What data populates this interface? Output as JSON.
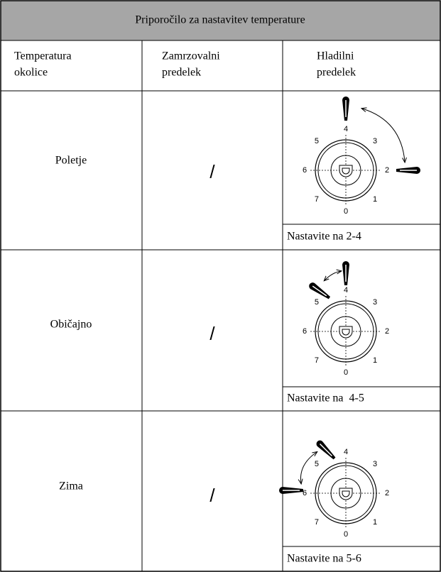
{
  "header": {
    "title": "Priporočilo za nastavitev temperature"
  },
  "table": {
    "columns": [
      [
        "Temperatura",
        "okolice"
      ],
      [
        "Zamrzovalni",
        "predelek"
      ],
      [
        "Hladilni",
        "predelek"
      ]
    ],
    "rows": [
      {
        "season": "Poletje",
        "freezer": "/",
        "dial": [
          "0",
          "1",
          "2",
          "3",
          "4",
          "5",
          "6",
          "7"
        ],
        "setting": "Nastavite na 2-4"
      },
      {
        "season": "Običajno",
        "freezer": "/",
        "dial": [
          "0",
          "1",
          "2",
          "3",
          "4",
          "5",
          "6",
          "7"
        ],
        "setting": "Nastavite na  4-5"
      },
      {
        "season": "Zima",
        "freezer": "/",
        "dial": [
          "0",
          "1",
          "2",
          "3",
          "4",
          "5",
          "6",
          "7"
        ],
        "setting": "Nastavite na 5-6"
      }
    ]
  }
}
